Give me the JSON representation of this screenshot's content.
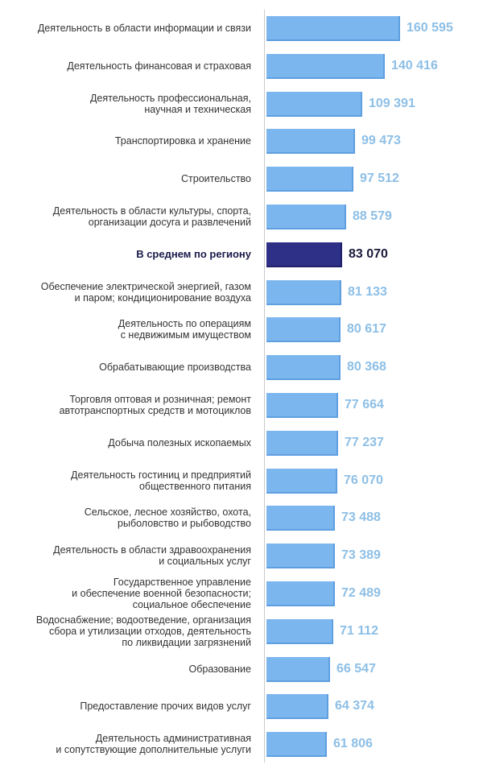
{
  "chart_data": {
    "type": "bar",
    "orientation": "horizontal",
    "categories": [
      "Деятельность в области информации и связи",
      "Деятельность финансовая и страховая",
      "Деятельность профессиональная,\nнаучная и техническая",
      "Транспортировка и хранение",
      "Строительство",
      "Деятельность в области культуры, спорта,\nорганизации досуга и развлечений",
      "В среднем по региону",
      "Обеспечение электрической энергией, газом\nи паром; кондиционирование воздуха",
      "Деятельность по операциям\nс недвижимым имуществом",
      "Обрабатывающие производства",
      "Торговля оптовая и розничная; ремонт\nавтотранспортных средств и мотоциклов",
      "Добыча полезных ископаемых",
      "Деятельность гостиниц и предприятий\nобщественного питания",
      "Сельское, лесное хозяйство, охота,\nрыболовство и рыбоводство",
      "Деятельность в области здравоохранения\nи социальных услуг",
      "Государственное управление\nи обеспечение военной безопасности;\nсоциальное обеспечение",
      "Водоснабжение; водоотведение, организация\nсбора и утилизации отходов, деятельность\nпо ликвидации загрязнений",
      "Образование",
      "Предоставление прочих видов услуг",
      "Деятельность административная\nи сопутствующие дополнительные услуги"
    ],
    "values": [
      160595,
      140416,
      109391,
      99473,
      97512,
      88579,
      83070,
      81133,
      80617,
      80368,
      77664,
      77237,
      76070,
      73488,
      73389,
      72489,
      71112,
      66547,
      64374,
      61806
    ],
    "value_labels": [
      "160 595",
      "140 416",
      "109 391",
      "99 473",
      "97 512",
      "88 579",
      "83 070",
      "81 133",
      "80 617",
      "80 368",
      "77 664",
      "77 237",
      "76 070",
      "73 488",
      "73 389",
      "72 489",
      "71 112",
      "66 547",
      "64 374",
      "61 806"
    ],
    "highlight_index": 6,
    "xlim": [
      0,
      160595
    ],
    "grid": false,
    "legend": "none",
    "colors": {
      "bar": "#7cb6ef",
      "bar_edge": "#5e9fe0",
      "highlight_bar": "#2e2f86",
      "value_text": "#8dbfe6",
      "highlight_value_text": "#1a1a3a",
      "axis": "#c9c9c9"
    }
  }
}
